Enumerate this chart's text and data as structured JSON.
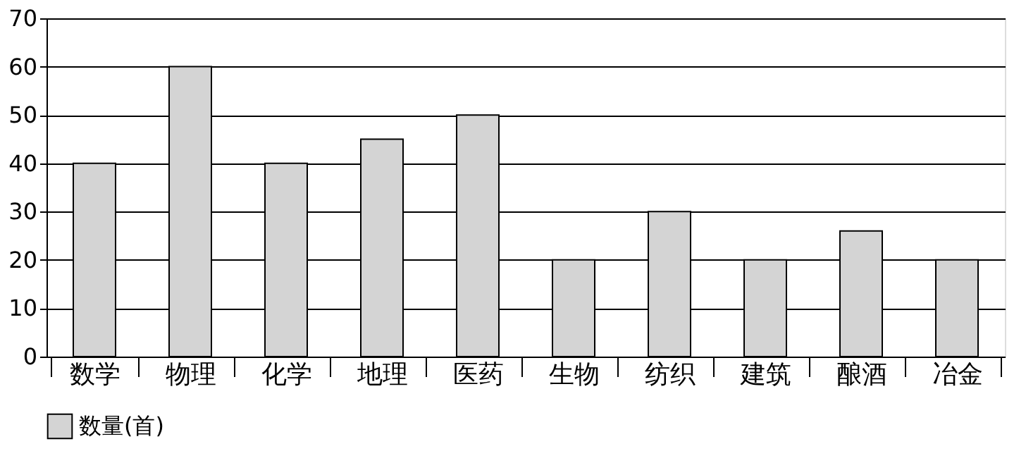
{
  "chart_data": {
    "type": "bar",
    "categories": [
      "数学",
      "物理",
      "化学",
      "地理",
      "医药",
      "生物",
      "纺织",
      "建筑",
      "酿酒",
      "冶金"
    ],
    "series": [
      {
        "name": "数量(首)",
        "color": "#d4d4d4",
        "values": [
          40,
          60,
          40,
          45,
          50,
          20,
          30,
          20,
          26,
          20
        ]
      }
    ],
    "ylim": [
      0,
      70
    ],
    "yticks": [
      0,
      10,
      20,
      30,
      40,
      50,
      60,
      70
    ],
    "grid": "y",
    "legend": "bottom"
  }
}
